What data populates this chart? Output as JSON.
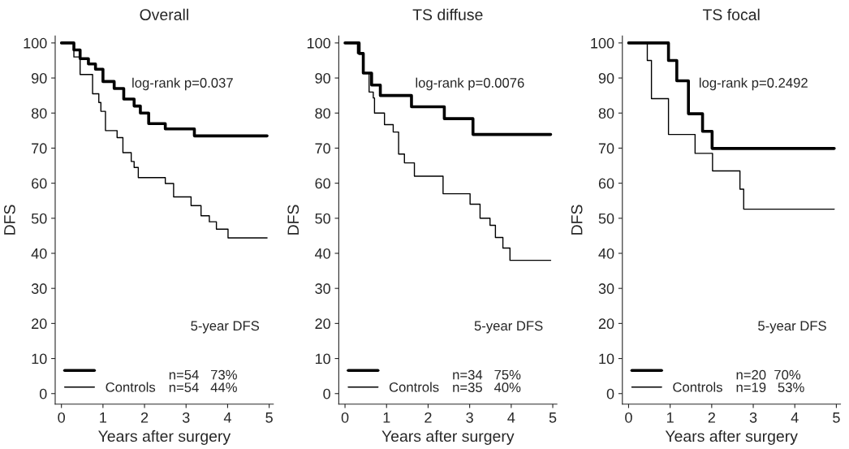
{
  "chart_data": [
    {
      "type": "step",
      "title": "Overall",
      "xlabel": "Years after surgery",
      "ylabel": "DFS",
      "xlim": [
        -0.15,
        5.1
      ],
      "ylim": [
        -3,
        102
      ],
      "xticks": [
        0,
        1,
        2,
        3,
        4,
        5
      ],
      "yticks": [
        0,
        10,
        20,
        30,
        40,
        50,
        60,
        70,
        80,
        90,
        100
      ],
      "grid": false,
      "legend": "bottom left",
      "annotations": [
        "log-rank p=0.037",
        "5-year DFS",
        "n=54   73%",
        "n=54   44%"
      ],
      "series": [
        {
          "color": "#000000",
          "x": [
            0,
            0.3,
            0.45,
            0.65,
            0.82,
            1.0,
            1.27,
            1.5,
            1.75,
            1.9,
            2.1,
            2.5,
            3.2,
            4.95
          ],
          "values": [
            100,
            98,
            95.5,
            94,
            92.5,
            89,
            87,
            84,
            82,
            80,
            77,
            75.5,
            73.5,
            73.5
          ]
        },
        {
          "name": "Controls",
          "color": "#000000",
          "x": [
            0,
            0.3,
            0.45,
            0.75,
            0.9,
            0.95,
            1.06,
            1.34,
            1.48,
            1.68,
            1.75,
            1.85,
            2.5,
            2.7,
            3.12,
            3.36,
            3.56,
            3.73,
            4.01,
            4.95
          ],
          "values": [
            100,
            96,
            91,
            85.5,
            83,
            80.5,
            75,
            73,
            68.7,
            66.2,
            64.5,
            61.6,
            59.9,
            56.1,
            53.6,
            50.7,
            49,
            46.9,
            44.4,
            44.4
          ]
        }
      ]
    },
    {
      "type": "step",
      "title": "TS diffuse",
      "xlabel": "Years after surgery",
      "ylabel": "DFS",
      "xlim": [
        -0.15,
        5.1
      ],
      "ylim": [
        -3,
        102
      ],
      "xticks": [
        0,
        1,
        2,
        3,
        4,
        5
      ],
      "yticks": [
        0,
        10,
        20,
        30,
        40,
        50,
        60,
        70,
        80,
        90,
        100
      ],
      "grid": false,
      "legend": "bottom left",
      "annotations": [
        "log-rank p=0.0076",
        "5-year DFS",
        "n=34   75%",
        "n=35   40%"
      ],
      "series": [
        {
          "color": "#000000",
          "x": [
            0,
            0.34,
            0.44,
            0.64,
            0.85,
            1.6,
            2.39,
            3.08,
            4.95
          ],
          "values": [
            100,
            97,
            91.4,
            88,
            85,
            81.8,
            78.4,
            73.9,
            73.9
          ]
        },
        {
          "name": "Controls",
          "color": "#000000",
          "x": [
            0,
            0.3,
            0.45,
            0.58,
            0.68,
            0.71,
            0.95,
            1.16,
            1.29,
            1.43,
            1.67,
            2.36,
            3.01,
            3.25,
            3.49,
            3.62,
            3.8,
            3.97,
            4.95
          ],
          "values": [
            100,
            97,
            91.5,
            86,
            84.3,
            80,
            76.7,
            74.6,
            68.3,
            65.8,
            62,
            57,
            54,
            50,
            48,
            44.5,
            41.5,
            38,
            38
          ]
        }
      ]
    },
    {
      "type": "step",
      "title": "TS focal",
      "xlabel": "Years after surgery",
      "ylabel": "DFS",
      "xlim": [
        -0.15,
        5.1
      ],
      "ylim": [
        -3,
        102
      ],
      "xticks": [
        0,
        1,
        2,
        3,
        4,
        5
      ],
      "yticks": [
        0,
        10,
        20,
        30,
        40,
        50,
        60,
        70,
        80,
        90,
        100
      ],
      "grid": false,
      "legend": "bottom left",
      "annotations": [
        "log-rank p=0.2492",
        "5-year DFS",
        "n=20  70%",
        "n=19   53%"
      ],
      "series": [
        {
          "color": "#000000",
          "x": [
            0,
            0.96,
            1.16,
            1.44,
            1.78,
            2.01,
            4.95
          ],
          "values": [
            100,
            95,
            89.2,
            79.8,
            74.8,
            69.9,
            69.9
          ]
        },
        {
          "name": "Controls",
          "color": "#000000",
          "x": [
            0,
            0.45,
            0.55,
            0.96,
            1.6,
            2.02,
            2.68,
            2.77,
            4.95
          ],
          "values": [
            100,
            95,
            84.1,
            73.9,
            68.5,
            63.5,
            58.3,
            52.6,
            52.6
          ]
        }
      ]
    }
  ]
}
